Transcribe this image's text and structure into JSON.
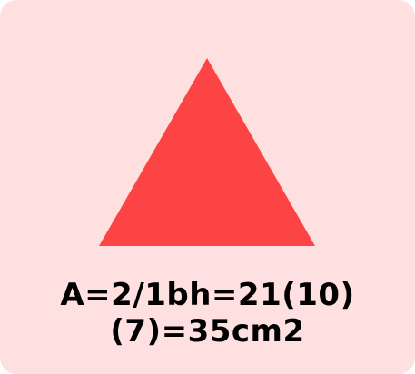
{
  "colors": {
    "background": "#ffe0e0",
    "triangle": "#fc4444",
    "text": "#000000"
  },
  "diagram": {
    "shape": "triangle",
    "formula_line1": "A=2/1bh=21(10)",
    "formula_line2": "(7)=35cm2"
  }
}
